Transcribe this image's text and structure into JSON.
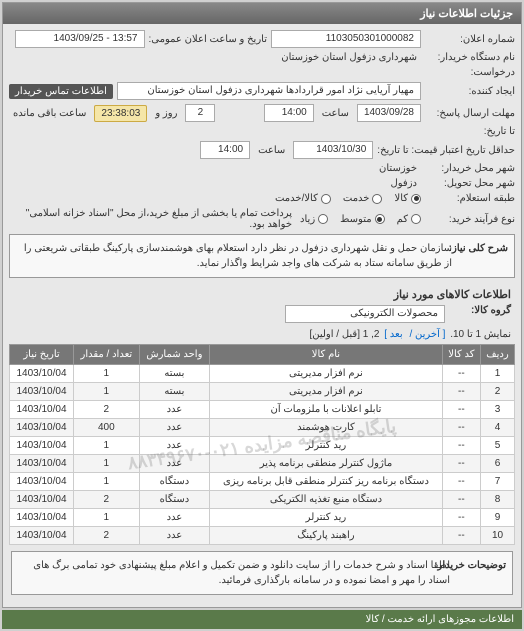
{
  "header": {
    "title": "جزئیات اطلاعات نیاز"
  },
  "form": {
    "notice_no_label": "شماره اعلان:",
    "notice_no": "1103050301000082",
    "pub_date_label": "تاریخ و ساعت اعلان عمومی:",
    "pub_date": "13:57 - 1403/09/25",
    "buyer_org_label": "نام دستگاه خریدار:",
    "buyer_org": "شهرداری دزفول استان خوزستان",
    "request_label": "درخواست:",
    "create_doc_label": "ایجاد کننده:",
    "creator_name": "مهیار آریایی نژاد امور قراردادها شهرداری دزفول استان خوزستان",
    "contact_btn": "اطلاعات تماس خریدار",
    "deadline_send_label": "مهلت ارسال پاسخ:",
    "deadline_to_label": "تا تاریخ:",
    "deadline_date": "1403/09/28",
    "time_label": "ساعت",
    "deadline_time": "14:00",
    "remain_days": "2",
    "remain_days_label": "روز و",
    "remain_time": "23:38:03",
    "remain_suffix": "ساعت باقی مانده",
    "price_valid_label": "حداقل تاریخ اعتبار قیمت: تا تاریخ:",
    "price_valid_date": "1403/10/30",
    "price_valid_time": "14:00",
    "buyer_city_label": "شهر محل خریدار:",
    "buyer_city": "خوزستان",
    "delivery_city_label": "شهر محل تحویل:",
    "delivery_city": "دزفول",
    "attach_label": "طبقه استعلام:",
    "radio_goods": "کالا",
    "radio_service": "خدمت",
    "radio_both": "کالا/خدمت",
    "process_label": "نوع فرآیند خرید:",
    "radio_low": "کم",
    "radio_mid": "متوسط",
    "radio_high": "زیاد",
    "payment_label": "پرداخت تمام یا بخشی از مبلغ خرید،از محل \"اسناد خزانه اسلامی\" خواهد بود."
  },
  "desc": {
    "label": "شرح کلی نیاز:",
    "text": "سازمان حمل و نقل شهرداری دزفول در نظر دارد استعلام بهای هوشمندسازی پارکینگ طبقاتی شریعتی را از طریق سامانه ستاد به شرکت های واجد شرایط واگذار نماید."
  },
  "goods": {
    "section_title": "اطلاعات کالاهای مورد نیاز",
    "group_label": "گروه کالا:",
    "group_value": "محصولات الکترونیکی",
    "pager_text_prefix": "نمایش 1 تا 10.",
    "pager_prev": "[ آخرین /",
    "pager_next": "بعد ]",
    "pager_pages": "2, 1",
    "pager_suffix": "[قبل / اولین]",
    "columns": [
      "ردیف",
      "کد کالا",
      "نام کالا",
      "واحد شمارش",
      "تعداد / مقدار",
      "تاریخ نیاز"
    ],
    "rows": [
      [
        "1",
        "--",
        "نرم افزار مدیریتی",
        "بسته",
        "1",
        "1403/10/04"
      ],
      [
        "2",
        "--",
        "نرم افزار مدیریتی",
        "بسته",
        "1",
        "1403/10/04"
      ],
      [
        "3",
        "--",
        "تابلو اعلانات با ملزومات آن",
        "عدد",
        "2",
        "1403/10/04"
      ],
      [
        "4",
        "--",
        "کارت هوشمند",
        "عدد",
        "400",
        "1403/10/04"
      ],
      [
        "5",
        "--",
        "رید کنترلر",
        "عدد",
        "1",
        "1403/10/04"
      ],
      [
        "6",
        "--",
        "ماژول کنترلر منطقی برنامه پذیر",
        "عدد",
        "1",
        "1403/10/04"
      ],
      [
        "7",
        "--",
        "دستگاه برنامه ریز کنترلر منطقی قابل برنامه ریزی",
        "دستگاه",
        "1",
        "1403/10/04"
      ],
      [
        "8",
        "--",
        "دستگاه منبع تغذیه الکتریکی",
        "دستگاه",
        "2",
        "1403/10/04"
      ],
      [
        "9",
        "--",
        "رید کنترلر",
        "عدد",
        "1",
        "1403/10/04"
      ],
      [
        "10",
        "--",
        "راهبند پارکینگ",
        "عدد",
        "2",
        "1403/10/04"
      ]
    ],
    "watermark": "پایگاه مناقصه مزایده\n۰۲۱-۸۸۳۴۹۶۷۰"
  },
  "note": {
    "label": "توضیحات خریدار:",
    "text": "لطفا اسناد و شرح خدمات را از سایت دانلود و ضمن تکمیل و اعلام مبلغ پیشنهادی خود تمامی برگ های اسناد را مهر و امضا نموده و در سامانه بارگذاری فرمائید."
  },
  "footer": {
    "text": "اطلاعات مجوزهای ارائه خدمت / کالا"
  }
}
